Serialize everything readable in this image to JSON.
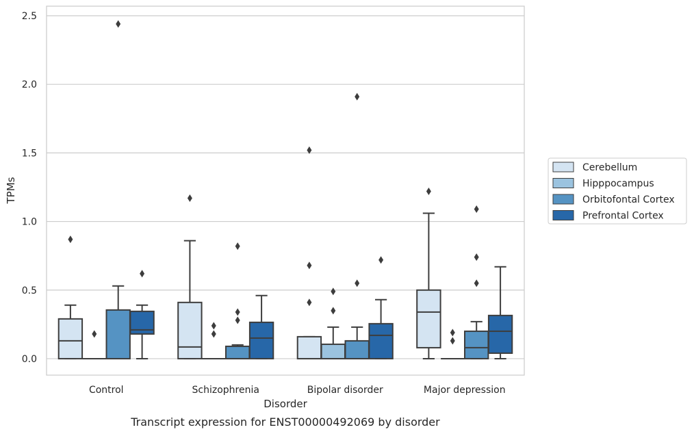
{
  "chart_data": {
    "type": "box",
    "title": "",
    "caption": "Transcript expression for ENST00000492069 by disorder",
    "xlabel": "Disorder",
    "ylabel": "TPMs",
    "ylim": [
      -0.12,
      2.57
    ],
    "yticks": [
      0.0,
      0.5,
      1.0,
      1.5,
      2.0,
      2.5
    ],
    "ytick_labels": [
      "0.0",
      "0.5",
      "1.0",
      "1.5",
      "2.0",
      "2.5"
    ],
    "grid": true,
    "legend_position": "right",
    "categories": [
      "Control",
      "Schizophrenia",
      "Bipolar disorder",
      "Major depression"
    ],
    "series": [
      {
        "name": "Cerebellum",
        "color": "#d4e4f2",
        "boxes": [
          {
            "q1": 0.0,
            "median": 0.13,
            "q3": 0.29,
            "whisker_low": 0.0,
            "whisker_high": 0.39,
            "outliers": [
              0.87
            ]
          },
          {
            "q1": 0.0,
            "median": 0.085,
            "q3": 0.41,
            "whisker_low": 0.0,
            "whisker_high": 0.86,
            "outliers": [
              1.17
            ]
          },
          {
            "q1": 0.0,
            "median": 0.0,
            "q3": 0.16,
            "whisker_low": 0.0,
            "whisker_high": 0.16,
            "outliers": [
              0.41,
              0.68,
              1.52
            ]
          },
          {
            "q1": 0.08,
            "median": 0.34,
            "q3": 0.5,
            "whisker_low": 0.0,
            "whisker_high": 1.06,
            "outliers": [
              1.22
            ]
          }
        ]
      },
      {
        "name": "Hipppocampus",
        "color": "#9bc3df",
        "boxes": [
          {
            "q1": 0.0,
            "median": 0.0,
            "q3": 0.0,
            "whisker_low": 0.0,
            "whisker_high": 0.0,
            "outliers": [
              0.18
            ]
          },
          {
            "q1": 0.0,
            "median": 0.0,
            "q3": 0.0,
            "whisker_low": 0.0,
            "whisker_high": 0.0,
            "outliers": [
              0.18,
              0.24
            ]
          },
          {
            "q1": 0.0,
            "median": 0.0,
            "q3": 0.105,
            "whisker_low": 0.0,
            "whisker_high": 0.23,
            "outliers": [
              0.35,
              0.49
            ]
          },
          {
            "q1": 0.0,
            "median": 0.0,
            "q3": 0.0,
            "whisker_low": 0.0,
            "whisker_high": 0.0,
            "outliers": [
              0.13,
              0.19
            ]
          }
        ]
      },
      {
        "name": "Orbitofontal Cortex",
        "color": "#5593c3",
        "boxes": [
          {
            "q1": 0.0,
            "median": 0.0,
            "q3": 0.355,
            "whisker_low": 0.0,
            "whisker_high": 0.53,
            "outliers": [
              2.44
            ]
          },
          {
            "q1": 0.0,
            "median": 0.0,
            "q3": 0.09,
            "whisker_low": 0.0,
            "whisker_high": 0.1,
            "outliers": [
              0.28,
              0.34,
              0.82
            ]
          },
          {
            "q1": 0.0,
            "median": 0.0,
            "q3": 0.13,
            "whisker_low": 0.0,
            "whisker_high": 0.23,
            "outliers": [
              0.55,
              1.91
            ]
          },
          {
            "q1": 0.0,
            "median": 0.08,
            "q3": 0.2,
            "whisker_low": 0.0,
            "whisker_high": 0.27,
            "outliers": [
              0.55,
              0.74,
              1.09
            ]
          }
        ]
      },
      {
        "name": "Prefrontal Cortex",
        "color": "#2767a8",
        "boxes": [
          {
            "q1": 0.18,
            "median": 0.21,
            "q3": 0.345,
            "whisker_low": 0.0,
            "whisker_high": 0.39,
            "outliers": [
              0.62
            ]
          },
          {
            "q1": 0.0,
            "median": 0.15,
            "q3": 0.265,
            "whisker_low": 0.0,
            "whisker_high": 0.46,
            "outliers": []
          },
          {
            "q1": 0.0,
            "median": 0.17,
            "q3": 0.255,
            "whisker_low": 0.0,
            "whisker_high": 0.43,
            "outliers": [
              0.72
            ]
          },
          {
            "q1": 0.04,
            "median": 0.2,
            "q3": 0.315,
            "whisker_low": 0.0,
            "whisker_high": 0.67,
            "outliers": []
          }
        ]
      }
    ]
  }
}
